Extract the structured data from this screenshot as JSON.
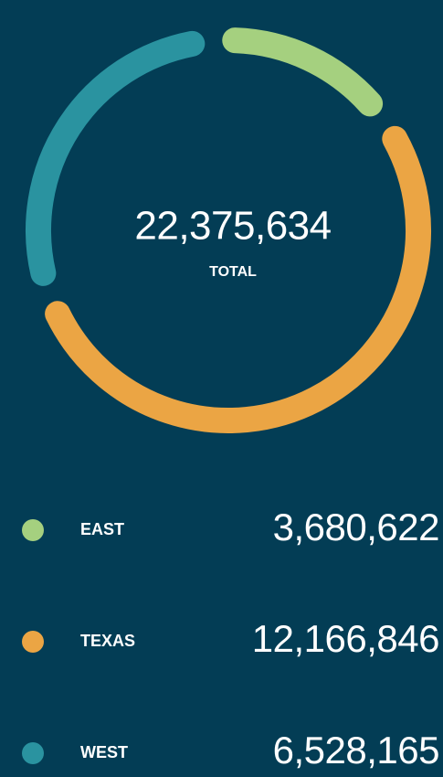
{
  "chart_data": {
    "type": "donut",
    "categories": [
      "EAST",
      "TEXAS",
      "WEST"
    ],
    "values": [
      3680622,
      12166846,
      6528165
    ],
    "value_labels": [
      "3,680,622",
      "12,166,846",
      "6,528,165"
    ],
    "colors": [
      "#a5d07f",
      "#eba544",
      "#2a93a0"
    ],
    "total": {
      "value": 22375634,
      "label": "22,375,634"
    },
    "total_caption": "TOTAL"
  }
}
